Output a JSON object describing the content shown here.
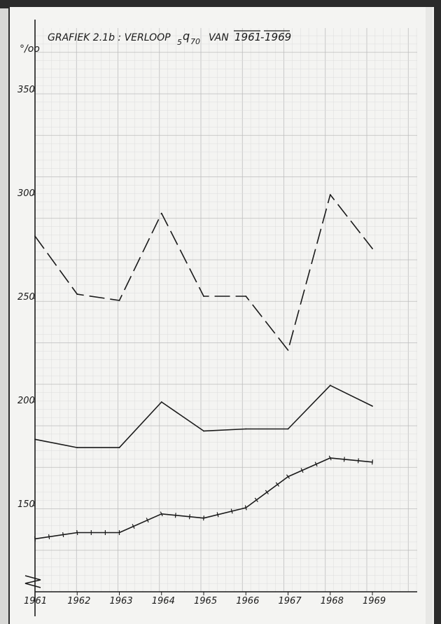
{
  "chart_data": {
    "type": "line",
    "title": "GRAFIEK 2.1b :  VERLOOP",
    "title_symbol": {
      "pre": "5",
      "main": "q",
      "sub": "70"
    },
    "title_tail": "VAN",
    "title_years": [
      "1961",
      "1969"
    ],
    "ylabel": "°/oo",
    "ylim": [
      122,
      370
    ],
    "y_ticks": [
      150,
      200,
      250,
      300,
      350
    ],
    "y_tick_labels": [
      "150",
      "200",
      "250",
      "300",
      "350"
    ],
    "axis_break": true,
    "grid": true,
    "categories": [
      "1961",
      "1962",
      "1963",
      "1964",
      "1965",
      "1966",
      "1967",
      "1968",
      "1969"
    ],
    "series": [
      {
        "style": "dashed",
        "values": [
          280,
          252,
          249,
          291,
          251,
          251,
          225,
          300,
          274
        ]
      },
      {
        "style": "solid",
        "values": [
          182,
          178,
          178,
          200,
          186,
          187,
          187,
          208,
          198
        ]
      },
      {
        "style": "crossed",
        "values": [
          134,
          137,
          137,
          146,
          144,
          149,
          164,
          173,
          171
        ]
      }
    ],
    "colors": {
      "paper": "#f4f4f2",
      "grid_minor": "#dcdcdc",
      "grid_major": "#bdbdbd",
      "ink": "#1a1a1a"
    }
  }
}
